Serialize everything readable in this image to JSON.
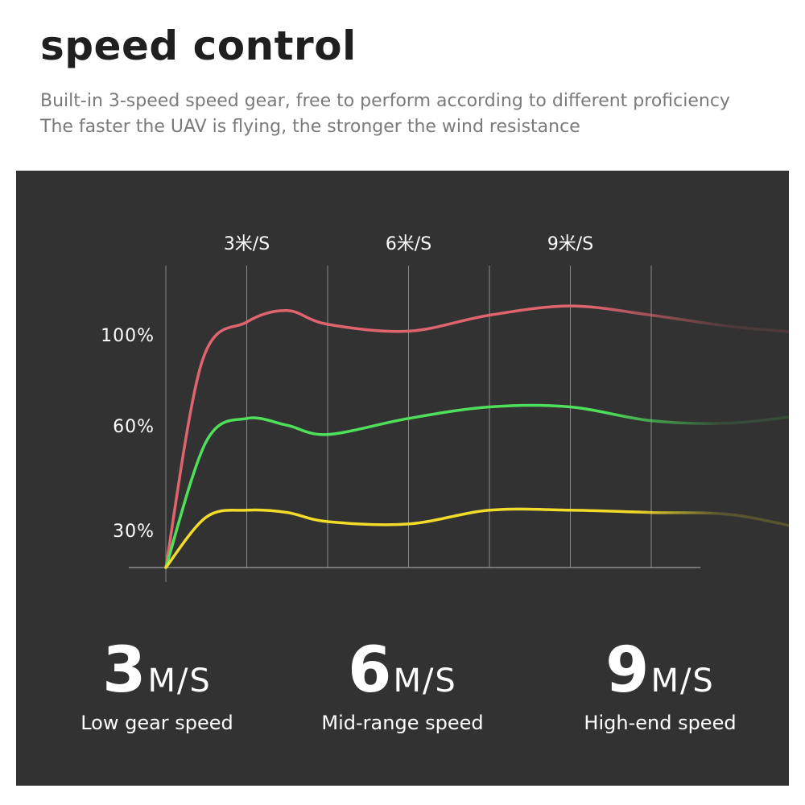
{
  "header": {
    "title": "speed control",
    "subtitle_line1": "Built-in 3-speed speed gear, free to perform according to different proficiency",
    "subtitle_line2": "The faster the UAV is flying, the stronger the wind resistance"
  },
  "chart_data": {
    "type": "line",
    "x_ticks": [
      "3米/S",
      "6米/S",
      "9米/S"
    ],
    "y_ticks": [
      "100%",
      "60%",
      "30%"
    ],
    "grid": true,
    "series": [
      {
        "color": "#e0646e",
        "points": [
          [
            0,
            0
          ],
          [
            0.45,
            90
          ],
          [
            1,
            107
          ],
          [
            1.5,
            112
          ],
          [
            2,
            106
          ],
          [
            3,
            103
          ],
          [
            4,
            110
          ],
          [
            5,
            114
          ],
          [
            6,
            110
          ],
          [
            7,
            105
          ],
          [
            8,
            102
          ]
        ]
      },
      {
        "color": "#4fe05a",
        "points": [
          [
            0,
            0
          ],
          [
            0.5,
            55
          ],
          [
            1,
            65
          ],
          [
            1.5,
            62
          ],
          [
            2,
            58
          ],
          [
            3,
            65
          ],
          [
            4,
            70
          ],
          [
            5,
            70
          ],
          [
            6,
            64
          ],
          [
            7,
            63
          ],
          [
            8,
            67
          ]
        ]
      },
      {
        "color": "#f2dc2a",
        "points": [
          [
            0,
            0
          ],
          [
            0.5,
            22
          ],
          [
            1,
            25
          ],
          [
            1.5,
            24
          ],
          [
            2,
            20
          ],
          [
            3,
            19
          ],
          [
            4,
            25
          ],
          [
            5,
            25
          ],
          [
            6,
            24
          ],
          [
            7,
            23
          ],
          [
            8,
            16
          ]
        ]
      }
    ]
  },
  "speeds": [
    {
      "value": "3",
      "unit": "M/S",
      "label": "Low gear speed"
    },
    {
      "value": "6",
      "unit": "M/S",
      "label": "Mid-range speed"
    },
    {
      "value": "9",
      "unit": "M/S",
      "label": "High-end speed"
    }
  ]
}
